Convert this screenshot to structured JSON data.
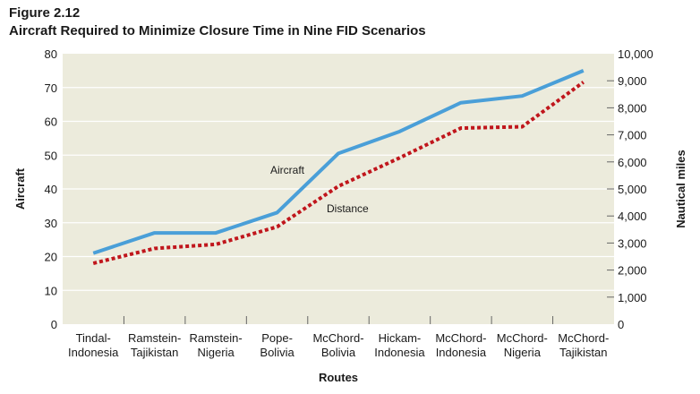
{
  "figure": {
    "label": "Figure 2.12",
    "title": "Aircraft Required to Minimize Closure Time in Nine FID Scenarios"
  },
  "colors": {
    "plot_background": "#ecebdc",
    "aircraft_line": "#4a9fd8",
    "distance_line": "#c0161c",
    "gridline": "#ffffff"
  },
  "chart_data": {
    "type": "line",
    "xlabel": "Routes",
    "ylabel": "Aircraft",
    "y2label": "Nautical miles",
    "ylim": [
      0,
      80
    ],
    "y2lim": [
      0,
      10000
    ],
    "yticks": [
      "0",
      "10",
      "20",
      "30",
      "40",
      "50",
      "60",
      "70",
      "80"
    ],
    "y2ticks": [
      "0",
      "1,000",
      "2,000",
      "3,000",
      "4,000",
      "5,000",
      "6,000",
      "7,000",
      "8,000",
      "9,000",
      "10,000"
    ],
    "grid": true,
    "categories": [
      [
        "Tindal-",
        "Indonesia"
      ],
      [
        "Ramstein-",
        "Tajikistan"
      ],
      [
        "Ramstein-",
        "Nigeria"
      ],
      [
        "Pope-",
        "Bolivia"
      ],
      [
        "McChord-",
        "Bolivia"
      ],
      [
        "Hickam-",
        "Indonesia"
      ],
      [
        "McChord-",
        "Indonesia"
      ],
      [
        "McChord-",
        "Nigeria"
      ],
      [
        "McChord-",
        "Tajikistan"
      ]
    ],
    "series": [
      {
        "name": "Aircraft",
        "axis": "left",
        "style": "solid",
        "values": [
          21,
          27,
          27,
          33,
          50.5,
          57,
          65.5,
          67.5,
          75
        ]
      },
      {
        "name": "Distance",
        "axis": "right",
        "style": "dotted",
        "values": [
          2250,
          2800,
          2950,
          3600,
          5100,
          6150,
          7250,
          7300,
          8950
        ]
      }
    ]
  }
}
